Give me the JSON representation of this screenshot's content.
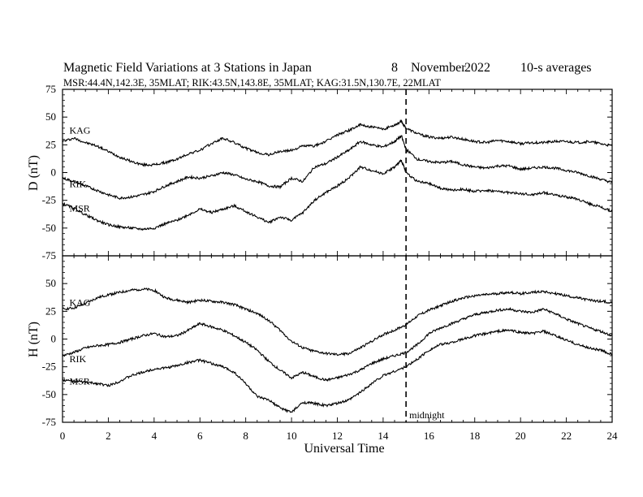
{
  "header": {
    "title": "Magnetic Field Variations at 3 Stations in Japan",
    "date_day": "8",
    "date_month": "November",
    "date_year": "2022",
    "averages": "10-s averages",
    "stations_line": "MSR:44.4N,142.3E, 35MLAT;  RIK:43.5N,143.8E, 35MLAT;  KAG:31.5N,130.7E, 22MLAT"
  },
  "chart_data": [
    {
      "type": "line",
      "panel": "D",
      "ylabel": "D (nT)",
      "ylim": [
        -75,
        75
      ],
      "yticks": [
        75,
        50,
        25,
        0,
        -25,
        -50,
        -75
      ],
      "xlim": [
        0,
        24
      ],
      "series": [
        {
          "name": "KAG",
          "color": "#000000",
          "x": [
            0,
            0.5,
            1,
            1.5,
            2,
            2.5,
            3,
            3.5,
            4,
            4.5,
            5,
            5.5,
            6,
            6.5,
            7,
            7.5,
            8,
            8.5,
            9,
            9.5,
            10,
            10.5,
            11,
            11.5,
            12,
            12.5,
            13,
            13.5,
            14,
            14.5,
            14.8,
            15,
            15.5,
            16,
            16.5,
            17,
            17.5,
            18,
            18.5,
            19,
            19.5,
            20,
            20.5,
            21,
            21.5,
            22,
            22.5,
            23,
            23.5,
            24
          ],
          "values": [
            28,
            31,
            27,
            24,
            19,
            14,
            10,
            7,
            7,
            9,
            12,
            17,
            20,
            26,
            31,
            27,
            22,
            18,
            16,
            19,
            20,
            24,
            24,
            28,
            34,
            38,
            43,
            41,
            39,
            43,
            46,
            40,
            35,
            32,
            31,
            32,
            30,
            28,
            27,
            29,
            28,
            26,
            27,
            27,
            28,
            28,
            27,
            28,
            26,
            24
          ]
        },
        {
          "name": "RIK",
          "color": "#000000",
          "x": [
            0,
            0.5,
            1,
            1.5,
            2,
            2.5,
            3,
            3.5,
            4,
            4.5,
            5,
            5.5,
            6,
            6.5,
            7,
            7.5,
            8,
            8.5,
            9,
            9.5,
            10,
            10.5,
            11,
            11.5,
            12,
            12.5,
            13,
            13.5,
            14,
            14.5,
            14.8,
            15,
            15.5,
            16,
            16.5,
            17,
            17.5,
            18,
            18.5,
            19,
            19.5,
            20,
            20.5,
            21,
            21.5,
            22,
            22.5,
            23,
            23.5,
            24
          ],
          "values": [
            -5,
            -8,
            -12,
            -16,
            -20,
            -23,
            -22,
            -20,
            -17,
            -12,
            -8,
            -4,
            -5,
            -3,
            0,
            -2,
            -6,
            -8,
            -12,
            -13,
            -5,
            -8,
            5,
            8,
            14,
            20,
            28,
            25,
            23,
            28,
            33,
            21,
            12,
            10,
            9,
            10,
            7,
            5,
            4,
            6,
            6,
            3,
            4,
            5,
            4,
            2,
            0,
            -3,
            -6,
            -9
          ]
        },
        {
          "name": "MSR",
          "color": "#000000",
          "x": [
            0,
            0.5,
            1,
            1.5,
            2,
            2.5,
            3,
            3.5,
            4,
            4.5,
            5,
            5.5,
            6,
            6.5,
            7,
            7.5,
            8,
            8.5,
            9,
            9.5,
            10,
            10.5,
            11,
            11.5,
            12,
            12.5,
            13,
            13.5,
            14,
            14.5,
            14.8,
            15,
            15.5,
            16,
            16.5,
            17,
            17.5,
            18,
            18.5,
            19,
            19.5,
            20,
            20.5,
            21,
            21.5,
            22,
            22.5,
            23,
            23.5,
            24
          ],
          "values": [
            -28,
            -32,
            -38,
            -43,
            -47,
            -49,
            -50,
            -51,
            -50,
            -46,
            -43,
            -38,
            -33,
            -36,
            -33,
            -30,
            -35,
            -40,
            -45,
            -40,
            -43,
            -36,
            -25,
            -18,
            -12,
            -5,
            5,
            2,
            -1,
            5,
            11,
            0,
            -8,
            -10,
            -14,
            -16,
            -15,
            -17,
            -16,
            -17,
            -18,
            -19,
            -20,
            -18,
            -20,
            -22,
            -24,
            -28,
            -31,
            -35
          ]
        }
      ],
      "station_labels": [
        {
          "text": "KAG",
          "x": 0.3,
          "y": 35
        },
        {
          "text": "RIK",
          "x": 0.3,
          "y": -13
        },
        {
          "text": "MSR",
          "x": 0.3,
          "y": -35
        }
      ]
    },
    {
      "type": "line",
      "panel": "H",
      "ylabel": "H (nT)",
      "ylim": [
        -75,
        75
      ],
      "yticks": [
        50,
        25,
        0,
        -25,
        -50,
        -75
      ],
      "xlim": [
        0,
        24
      ],
      "xticks": [
        0,
        2,
        4,
        6,
        8,
        10,
        12,
        14,
        16,
        18,
        20,
        22,
        24
      ],
      "xlabel": "Universal Time",
      "series": [
        {
          "name": "KAG",
          "color": "#000000",
          "x": [
            0,
            0.5,
            1,
            1.5,
            2,
            2.5,
            3,
            3.5,
            4,
            4.5,
            5,
            5.5,
            6,
            6.5,
            7,
            7.5,
            8,
            8.5,
            9,
            9.5,
            10,
            10.5,
            11,
            11.5,
            12,
            12.5,
            13,
            13.5,
            14,
            14.5,
            15,
            15.5,
            16,
            16.5,
            17,
            17.5,
            18,
            18.5,
            19,
            19.5,
            20,
            20.5,
            21,
            21.5,
            22,
            22.5,
            23,
            23.5,
            24
          ],
          "values": [
            27,
            28,
            32,
            37,
            40,
            42,
            44,
            45,
            44,
            37,
            35,
            33,
            35,
            34,
            33,
            31,
            27,
            23,
            17,
            8,
            -2,
            -8,
            -11,
            -13,
            -14,
            -13,
            -8,
            -2,
            4,
            8,
            13,
            21,
            26,
            30,
            34,
            37,
            39,
            40,
            41,
            42,
            41,
            42,
            43,
            41,
            39,
            37,
            35,
            34,
            33
          ]
        },
        {
          "name": "RIK",
          "color": "#000000",
          "x": [
            0,
            0.5,
            1,
            1.5,
            2,
            2.5,
            3,
            3.5,
            4,
            4.5,
            5,
            5.5,
            6,
            6.5,
            7,
            7.5,
            8,
            8.5,
            9,
            9.5,
            10,
            10.5,
            11,
            11.5,
            12,
            12.5,
            13,
            13.5,
            14,
            14.5,
            15,
            15.5,
            16,
            16.5,
            17,
            17.5,
            18,
            18.5,
            19,
            19.5,
            20,
            20.5,
            21,
            21.5,
            22,
            22.5,
            23,
            23.5,
            24
          ],
          "values": [
            -15,
            -12,
            -8,
            -6,
            -5,
            -3,
            0,
            3,
            5,
            2,
            3,
            8,
            14,
            11,
            8,
            3,
            -3,
            -10,
            -20,
            -28,
            -35,
            -30,
            -34,
            -37,
            -35,
            -32,
            -28,
            -22,
            -18,
            -15,
            -12,
            -5,
            5,
            10,
            14,
            18,
            22,
            24,
            26,
            27,
            25,
            24,
            27,
            23,
            18,
            14,
            10,
            7,
            3
          ]
        },
        {
          "name": "MSR",
          "color": "#000000",
          "x": [
            0,
            0.5,
            1,
            1.5,
            2,
            2.5,
            3,
            3.5,
            4,
            4.5,
            5,
            5.5,
            6,
            6.5,
            7,
            7.5,
            8,
            8.5,
            9,
            9.5,
            10,
            10.5,
            11,
            11.5,
            12,
            12.5,
            13,
            13.5,
            14,
            14.5,
            15,
            15.5,
            16,
            16.5,
            17,
            17.5,
            18,
            18.5,
            19,
            19.5,
            20,
            20.5,
            21,
            21.5,
            22,
            22.5,
            23,
            23.5,
            24
          ],
          "values": [
            -37,
            -38,
            -39,
            -40,
            -42,
            -38,
            -33,
            -30,
            -27,
            -26,
            -24,
            -21,
            -19,
            -22,
            -25,
            -30,
            -40,
            -52,
            -55,
            -62,
            -66,
            -57,
            -58,
            -60,
            -58,
            -55,
            -48,
            -40,
            -33,
            -29,
            -25,
            -18,
            -10,
            -5,
            -3,
            0,
            3,
            5,
            7,
            8,
            6,
            5,
            7,
            3,
            -1,
            -5,
            -8,
            -10,
            -14
          ]
        }
      ],
      "station_labels": [
        {
          "text": "KAG",
          "x": 0.3,
          "y": 30
        },
        {
          "text": "RIK",
          "x": 0.3,
          "y": -21
        },
        {
          "text": "MSR",
          "x": 0.3,
          "y": -41
        }
      ]
    }
  ],
  "annotations": {
    "midnight_label": "midnight",
    "midnight_ut": 15
  }
}
